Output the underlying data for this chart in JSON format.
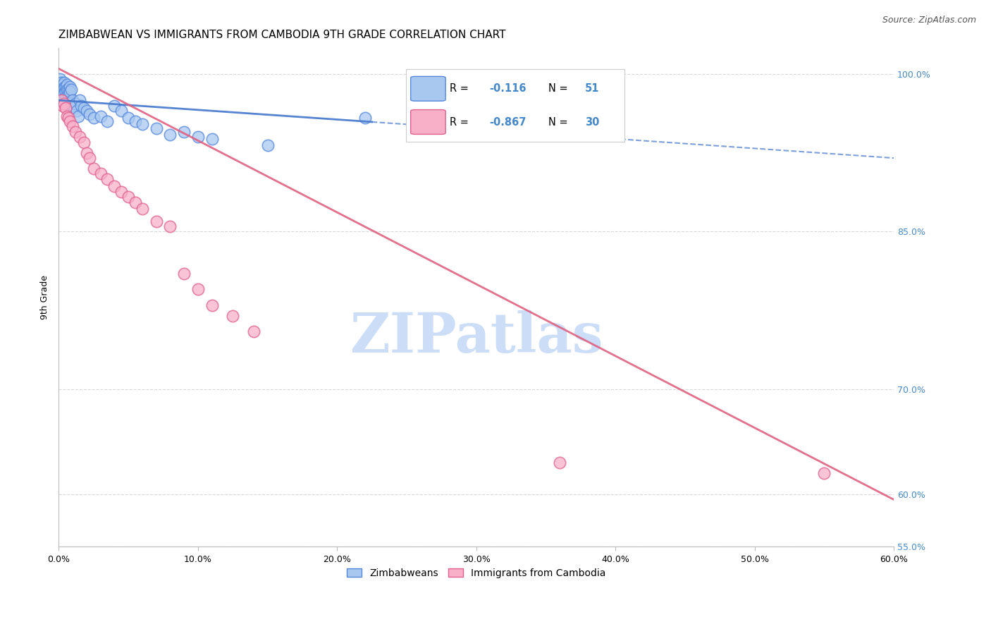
{
  "title": "ZIMBABWEAN VS IMMIGRANTS FROM CAMBODIA 9TH GRADE CORRELATION CHART",
  "source": "Source: ZipAtlas.com",
  "ylabel": "9th Grade",
  "xlabel": "",
  "xlim": [
    0.0,
    0.6
  ],
  "ylim": [
    0.575,
    1.025
  ],
  "ytick_positions": [
    0.55,
    0.6,
    0.7,
    0.85,
    1.0
  ],
  "ytick_labels": [
    "55.0%",
    "60.0%",
    "70.0%",
    "85.0%",
    "100.0%"
  ],
  "xtick_values": [
    0.0,
    0.1,
    0.2,
    0.3,
    0.4,
    0.5,
    0.6
  ],
  "xtick_labels": [
    "0.0%",
    "10.0%",
    "20.0%",
    "30.0%",
    "40.0%",
    "50.0%",
    "60.0%"
  ],
  "blue_R": -0.116,
  "blue_N": 51,
  "pink_R": -0.867,
  "pink_N": 30,
  "blue_color": "#a8c8f0",
  "pink_color": "#f8b0c8",
  "blue_edge_color": "#5588dd",
  "pink_edge_color": "#e06090",
  "blue_line_color": "#4477cc",
  "pink_line_color": "#e06080",
  "watermark": "ZIPatlas",
  "watermark_color": "#ccddf8",
  "blue_points_x": [
    0.001,
    0.001,
    0.001,
    0.002,
    0.002,
    0.002,
    0.002,
    0.002,
    0.003,
    0.003,
    0.003,
    0.003,
    0.004,
    0.004,
    0.004,
    0.005,
    0.005,
    0.005,
    0.006,
    0.006,
    0.007,
    0.007,
    0.008,
    0.008,
    0.009,
    0.01,
    0.01,
    0.011,
    0.012,
    0.013,
    0.014,
    0.015,
    0.016,
    0.018,
    0.02,
    0.022,
    0.025,
    0.03,
    0.035,
    0.04,
    0.045,
    0.05,
    0.055,
    0.06,
    0.07,
    0.08,
    0.09,
    0.1,
    0.11,
    0.15,
    0.22
  ],
  "blue_points_y": [
    0.99,
    0.985,
    0.995,
    0.988,
    0.992,
    0.983,
    0.978,
    0.975,
    0.99,
    0.985,
    0.98,
    0.975,
    0.992,
    0.987,
    0.982,
    0.988,
    0.983,
    0.978,
    0.99,
    0.985,
    0.985,
    0.98,
    0.988,
    0.983,
    0.985,
    0.975,
    0.97,
    0.968,
    0.972,
    0.965,
    0.96,
    0.975,
    0.97,
    0.968,
    0.965,
    0.962,
    0.958,
    0.96,
    0.955,
    0.97,
    0.965,
    0.958,
    0.955,
    0.952,
    0.948,
    0.942,
    0.945,
    0.94,
    0.938,
    0.932,
    0.958
  ],
  "pink_points_x": [
    0.002,
    0.003,
    0.004,
    0.005,
    0.006,
    0.007,
    0.008,
    0.01,
    0.012,
    0.015,
    0.018,
    0.02,
    0.022,
    0.025,
    0.03,
    0.035,
    0.04,
    0.045,
    0.05,
    0.055,
    0.06,
    0.07,
    0.08,
    0.09,
    0.1,
    0.11,
    0.125,
    0.14,
    0.36,
    0.55
  ],
  "pink_points_y": [
    0.975,
    0.97,
    0.972,
    0.968,
    0.96,
    0.958,
    0.955,
    0.95,
    0.945,
    0.94,
    0.935,
    0.925,
    0.92,
    0.91,
    0.905,
    0.9,
    0.893,
    0.888,
    0.883,
    0.878,
    0.872,
    0.86,
    0.855,
    0.81,
    0.795,
    0.78,
    0.77,
    0.755,
    0.63,
    0.62
  ],
  "grid_color": "#d8d8d8",
  "background_color": "#ffffff",
  "title_fontsize": 11,
  "axis_label_fontsize": 9,
  "tick_fontsize": 9,
  "right_ytick_color": "#4488cc",
  "legend_box_color": "#cccccc"
}
